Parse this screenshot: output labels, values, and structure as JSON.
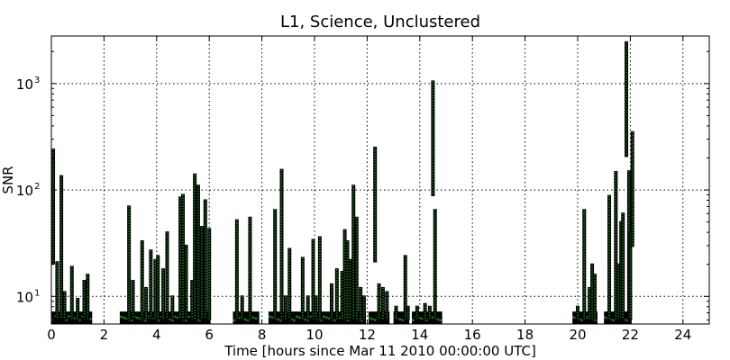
{
  "chart_data": {
    "type": "scatter",
    "title": "L1, Science, Unclustered",
    "xlabel": "Time [hours since Mar 11 2010 00:00:00 UTC]",
    "ylabel": "SNR",
    "xlim": [
      0,
      25
    ],
    "ylim": [
      5.5,
      2800
    ],
    "yscale": "log",
    "grid": true,
    "x_ticks": [
      "0",
      "2",
      "4",
      "6",
      "8",
      "10",
      "12",
      "14",
      "16",
      "18",
      "20",
      "22",
      "24"
    ],
    "y_ticks": [
      {
        "base": "10",
        "exp": "1",
        "value": 10
      },
      {
        "base": "10",
        "exp": "2",
        "value": 100
      },
      {
        "base": "10",
        "exp": "3",
        "value": 1000
      }
    ],
    "marker_color": "#1e7a1e",
    "marker_edge": "#000000",
    "segments": [
      [
        0.0,
        1.55
      ],
      [
        2.6,
        6.05
      ],
      [
        6.9,
        7.9
      ],
      [
        8.25,
        11.95
      ],
      [
        12.05,
        12.85
      ],
      [
        13.0,
        13.6
      ],
      [
        13.7,
        14.85
      ],
      [
        19.8,
        20.75
      ],
      [
        21.0,
        22.05
      ]
    ],
    "peaks": [
      {
        "x": 0.07,
        "snr": 240
      },
      {
        "x": 0.22,
        "snr": 21
      },
      {
        "x": 0.38,
        "snr": 135
      },
      {
        "x": 0.5,
        "snr": 11
      },
      {
        "x": 0.78,
        "snr": 19
      },
      {
        "x": 1.0,
        "snr": 9.5
      },
      {
        "x": 1.25,
        "snr": 14
      },
      {
        "x": 1.38,
        "snr": 16
      },
      {
        "x": 2.95,
        "snr": 70
      },
      {
        "x": 3.1,
        "snr": 14
      },
      {
        "x": 3.45,
        "snr": 33
      },
      {
        "x": 3.6,
        "snr": 12
      },
      {
        "x": 3.78,
        "snr": 27
      },
      {
        "x": 3.95,
        "snr": 22
      },
      {
        "x": 4.05,
        "snr": 24
      },
      {
        "x": 4.25,
        "snr": 18
      },
      {
        "x": 4.4,
        "snr": 40
      },
      {
        "x": 4.6,
        "snr": 10
      },
      {
        "x": 4.9,
        "snr": 85
      },
      {
        "x": 5.0,
        "snr": 90
      },
      {
        "x": 5.12,
        "snr": 30
      },
      {
        "x": 5.35,
        "snr": 14
      },
      {
        "x": 5.45,
        "snr": 140
      },
      {
        "x": 5.58,
        "snr": 110
      },
      {
        "x": 5.72,
        "snr": 45
      },
      {
        "x": 5.85,
        "snr": 80
      },
      {
        "x": 6.0,
        "snr": 43
      },
      {
        "x": 7.05,
        "snr": 52
      },
      {
        "x": 7.25,
        "snr": 10
      },
      {
        "x": 7.55,
        "snr": 55
      },
      {
        "x": 8.5,
        "snr": 65
      },
      {
        "x": 8.75,
        "snr": 155
      },
      {
        "x": 8.9,
        "snr": 10
      },
      {
        "x": 9.05,
        "snr": 28
      },
      {
        "x": 9.55,
        "snr": 23
      },
      {
        "x": 9.75,
        "snr": 10
      },
      {
        "x": 9.95,
        "snr": 34
      },
      {
        "x": 10.05,
        "snr": 10
      },
      {
        "x": 10.2,
        "snr": 36
      },
      {
        "x": 10.65,
        "snr": 13
      },
      {
        "x": 10.85,
        "snr": 18
      },
      {
        "x": 11.05,
        "snr": 17
      },
      {
        "x": 11.15,
        "snr": 42
      },
      {
        "x": 11.25,
        "snr": 33
      },
      {
        "x": 11.35,
        "snr": 22
      },
      {
        "x": 11.48,
        "snr": 110
      },
      {
        "x": 11.6,
        "snr": 55
      },
      {
        "x": 11.75,
        "snr": 12
      },
      {
        "x": 11.88,
        "snr": 10
      },
      {
        "x": 12.3,
        "snr": 250
      },
      {
        "x": 12.45,
        "snr": 13
      },
      {
        "x": 12.6,
        "snr": 12
      },
      {
        "x": 12.75,
        "snr": 11
      },
      {
        "x": 13.1,
        "snr": 8
      },
      {
        "x": 13.45,
        "snr": 24
      },
      {
        "x": 13.55,
        "snr": 8
      },
      {
        "x": 13.9,
        "snr": 8
      },
      {
        "x": 14.2,
        "snr": 8.5
      },
      {
        "x": 14.38,
        "snr": 8
      },
      {
        "x": 14.5,
        "snr": 1050
      },
      {
        "x": 14.58,
        "snr": 65
      },
      {
        "x": 20.0,
        "snr": 8
      },
      {
        "x": 20.25,
        "snr": 65
      },
      {
        "x": 20.45,
        "snr": 12
      },
      {
        "x": 20.55,
        "snr": 20
      },
      {
        "x": 20.65,
        "snr": 16
      },
      {
        "x": 21.2,
        "snr": 88
      },
      {
        "x": 21.45,
        "snr": 148
      },
      {
        "x": 21.55,
        "snr": 20
      },
      {
        "x": 21.65,
        "snr": 50
      },
      {
        "x": 21.72,
        "snr": 60
      },
      {
        "x": 21.85,
        "snr": 2450
      },
      {
        "x": 21.95,
        "snr": 150
      },
      {
        "x": 22.0,
        "snr": 40
      },
      {
        "x": 22.08,
        "snr": 350
      }
    ]
  }
}
